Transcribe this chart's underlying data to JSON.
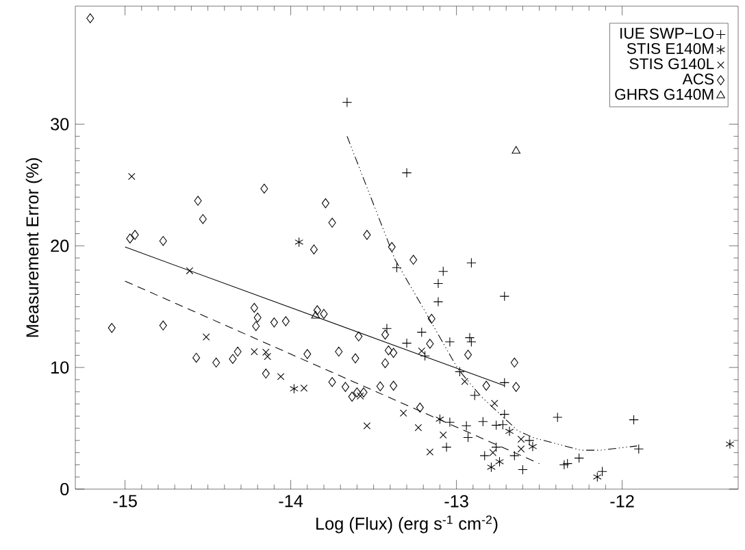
{
  "chart_data": {
    "type": "scatter",
    "xlabel": "Log (Flux) (erg s$^{-1}$ cm$^{-2}$)",
    "ylabel": "Measurement Error (%)",
    "xlim": [
      -15.3,
      -11.3
    ],
    "ylim": [
      0,
      39.7
    ],
    "xticks": [
      -15,
      -14,
      -13,
      -12
    ],
    "yticks": [
      0,
      10,
      20,
      30
    ],
    "legend": "top right",
    "series": [
      {
        "name": "IUE SWP−LO",
        "color": "#000000",
        "marker": "plus",
        "x": [
          -13.66,
          -13.3,
          -13.36,
          -13.08,
          -12.91,
          -13.11,
          -13.11,
          -12.71,
          -13.42,
          -13.21,
          -13.3,
          -13.04,
          -12.92,
          -12.91,
          -13.19,
          -12.98,
          -12.71,
          -12.89,
          -13.04,
          -12.94,
          -12.84,
          -12.76,
          -12.72,
          -12.71,
          -12.93,
          -12.56,
          -13.06,
          -12.76,
          -12.83,
          -12.65,
          -12.6,
          -12.35,
          -12.33,
          -12.26,
          -12.39,
          -11.93,
          -11.9,
          -12.12
        ],
        "values": [
          31.8,
          26.0,
          18.2,
          17.9,
          18.6,
          16.9,
          15.4,
          15.85,
          13.2,
          12.9,
          12.0,
          12.1,
          12.45,
          12.1,
          10.95,
          9.65,
          8.75,
          7.7,
          5.5,
          5.2,
          5.55,
          5.25,
          5.3,
          6.15,
          4.25,
          4.0,
          3.45,
          3.45,
          2.75,
          2.75,
          1.6,
          2.0,
          2.1,
          2.55,
          5.9,
          5.7,
          3.3,
          1.45
        ]
      },
      {
        "name": "STIS E140M",
        "color": "#000000",
        "x": [
          -13.95,
          -13.98,
          -13.1,
          -12.68,
          -12.54,
          -12.74,
          -12.79,
          -12.15,
          -11.35
        ],
        "values": [
          20.3,
          8.25,
          5.75,
          4.75,
          3.5,
          2.25,
          1.8,
          1.0,
          3.7
        ]
      },
      {
        "name": "STIS G140L",
        "color": "#000000",
        "marker": "cross",
        "x": [
          -14.96,
          -14.61,
          -14.51,
          -14.22,
          -14.15,
          -14.14,
          -14.06,
          -13.92,
          -13.21,
          -12.95,
          -12.77,
          -13.58,
          -13.32,
          -13.54,
          -13.23,
          -13.08,
          -12.61,
          -12.61,
          -13.16,
          -12.78
        ],
        "values": [
          25.7,
          17.95,
          12.5,
          11.3,
          11.25,
          10.9,
          9.25,
          8.3,
          11.35,
          8.85,
          7.05,
          7.65,
          6.25,
          5.2,
          5.05,
          4.45,
          4.1,
          3.3,
          3.05,
          3.0
        ]
      },
      {
        "name": "ACS",
        "color": "#000000",
        "marker": "diamond",
        "x": [
          -15.21,
          -14.56,
          -14.53,
          -14.16,
          -13.79,
          -13.75,
          -14.97,
          -14.94,
          -14.77,
          -13.86,
          -14.22,
          -14.2,
          -14.21,
          -14.1,
          -14.03,
          -13.84,
          -13.8,
          -15.08,
          -14.77,
          -14.57,
          -14.45,
          -14.35,
          -14.32,
          -13.9,
          -14.15,
          -13.75,
          -13.54,
          -13.39,
          -13.26,
          -13.15,
          -13.59,
          -13.43,
          -13.16,
          -13.41,
          -13.38,
          -13.71,
          -13.61,
          -13.43,
          -12.93,
          -12.65,
          -12.82,
          -12.64,
          -13.67,
          -13.63,
          -13.6,
          -13.56,
          -13.46,
          -13.38,
          -13.22
        ],
        "values": [
          38.7,
          23.7,
          22.2,
          24.7,
          23.5,
          21.9,
          20.6,
          20.9,
          20.4,
          19.7,
          14.9,
          14.1,
          13.4,
          13.7,
          13.8,
          14.7,
          14.4,
          13.25,
          13.45,
          10.8,
          10.4,
          10.7,
          11.3,
          11.1,
          9.5,
          8.8,
          20.9,
          19.9,
          18.85,
          14.0,
          12.55,
          12.7,
          11.95,
          11.4,
          11.2,
          11.3,
          10.75,
          10.35,
          11.05,
          10.4,
          8.5,
          8.4,
          8.4,
          7.6,
          7.95,
          7.95,
          8.45,
          8.5,
          6.7
        ]
      },
      {
        "name": "GHRS G140M",
        "color": "#000000",
        "marker": "triangle",
        "x": [
          -12.64,
          -13.85
        ],
        "values": [
          27.8,
          14.25
        ]
      },
      {
        "type": "line",
        "color": "#000000",
        "line_style": "solid",
        "x": [
          -15.0,
          -12.71
        ],
        "values": [
          19.9,
          8.5
        ]
      },
      {
        "type": "line",
        "color": "#000000",
        "line_style": "dashed",
        "x": [
          -15.0,
          -12.5
        ],
        "values": [
          17.1,
          2.1
        ]
      },
      {
        "type": "line",
        "color": "#000000",
        "line_style": "dashdotdot",
        "x": [
          -13.66,
          -13.37,
          -13.21,
          -12.99,
          -12.85,
          -12.63,
          -12.53,
          -12.43,
          -12.25,
          -12.13,
          -11.91
        ],
        "values": [
          29.0,
          18.85,
          15.1,
          9.85,
          7.6,
          4.8,
          4.2,
          3.85,
          3.2,
          3.2,
          3.55
        ]
      }
    ]
  }
}
